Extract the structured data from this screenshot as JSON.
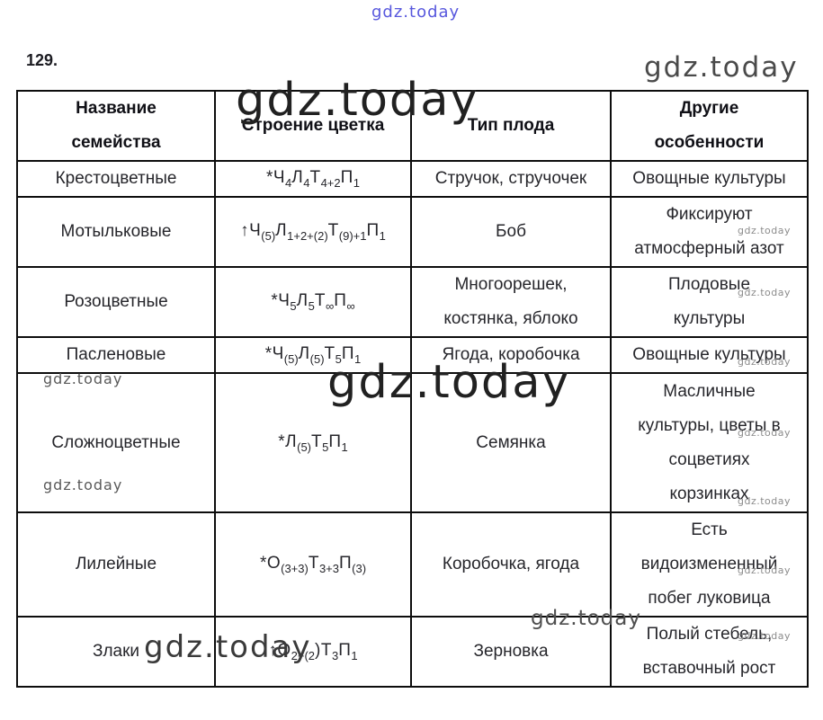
{
  "page": {
    "exercise_number": "129."
  },
  "watermark": {
    "text": "gdz.today"
  },
  "table": {
    "headers": {
      "family": [
        "Название",
        "семейства"
      ],
      "flower": [
        "Строение цветка"
      ],
      "fruit": [
        "Тип плода"
      ],
      "features": [
        "Другие",
        "особенности"
      ]
    },
    "rows": [
      {
        "family": "Крестоцветные",
        "formula": [
          {
            "t": "*Ч"
          },
          {
            "s": "4"
          },
          {
            "t": "Л"
          },
          {
            "s": "4"
          },
          {
            "t": "Т"
          },
          {
            "s": "4+2"
          },
          {
            "t": "П"
          },
          {
            "s": "1"
          }
        ],
        "fruit": [
          "Стручок, стручочек"
        ],
        "features": [
          "Овощные культуры"
        ]
      },
      {
        "family": "Мотыльковые",
        "formula": [
          {
            "t": "↑Ч"
          },
          {
            "s": "(5)"
          },
          {
            "t": "Л"
          },
          {
            "s": "1+2+(2)"
          },
          {
            "t": "Т"
          },
          {
            "s": "(9)+1"
          },
          {
            "t": "П"
          },
          {
            "s": "1"
          }
        ],
        "fruit": [
          "Боб"
        ],
        "features": [
          "Фиксируют",
          "атмосферный азот"
        ]
      },
      {
        "family": "Розоцветные",
        "formula": [
          {
            "t": "*Ч"
          },
          {
            "s": "5"
          },
          {
            "t": "Л"
          },
          {
            "s": "5"
          },
          {
            "t": "Т"
          },
          {
            "s": "∞"
          },
          {
            "t": "П"
          },
          {
            "s": "∞"
          }
        ],
        "fruit": [
          "Многоорешек,",
          "костянка, яблоко"
        ],
        "features": [
          "Плодовые",
          "культуры"
        ]
      },
      {
        "family": "Пасленовые",
        "formula": [
          {
            "t": "*Ч"
          },
          {
            "s": "(5)"
          },
          {
            "t": "Л"
          },
          {
            "s": "(5)"
          },
          {
            "t": "Т"
          },
          {
            "s": "5"
          },
          {
            "t": "П"
          },
          {
            "s": "1"
          }
        ],
        "fruit": [
          "Ягода, коробочка"
        ],
        "features": [
          "Овощные культуры"
        ]
      },
      {
        "family": "Сложноцветные",
        "formula": [
          {
            "t": "*Л"
          },
          {
            "s": "(5)"
          },
          {
            "t": "Т"
          },
          {
            "s": "5"
          },
          {
            "t": "П"
          },
          {
            "s": "1"
          }
        ],
        "fruit": [
          "Семянка"
        ],
        "features": [
          "Масличные",
          "культуры, цветы в",
          "соцветиях",
          "корзинках"
        ]
      },
      {
        "family": "Лилейные",
        "formula": [
          {
            "t": "*О"
          },
          {
            "s": "(3+3)"
          },
          {
            "t": "Т"
          },
          {
            "s": "3+3"
          },
          {
            "t": "П"
          },
          {
            "s": "(3)"
          }
        ],
        "fruit": [
          "Коробочка, ягода"
        ],
        "features": [
          "Есть",
          "видоизмененный",
          "побег луковица"
        ]
      },
      {
        "family": "Злаки",
        "formula": [
          {
            "t": "↑О"
          },
          {
            "s": "2+(2"
          },
          {
            "t": ")Т"
          },
          {
            "s": "3"
          },
          {
            "t": "П"
          },
          {
            "s": "1"
          }
        ],
        "fruit": [
          "Зерновка"
        ],
        "features": [
          "Полый стебель,",
          "вставочный рост"
        ]
      }
    ]
  }
}
